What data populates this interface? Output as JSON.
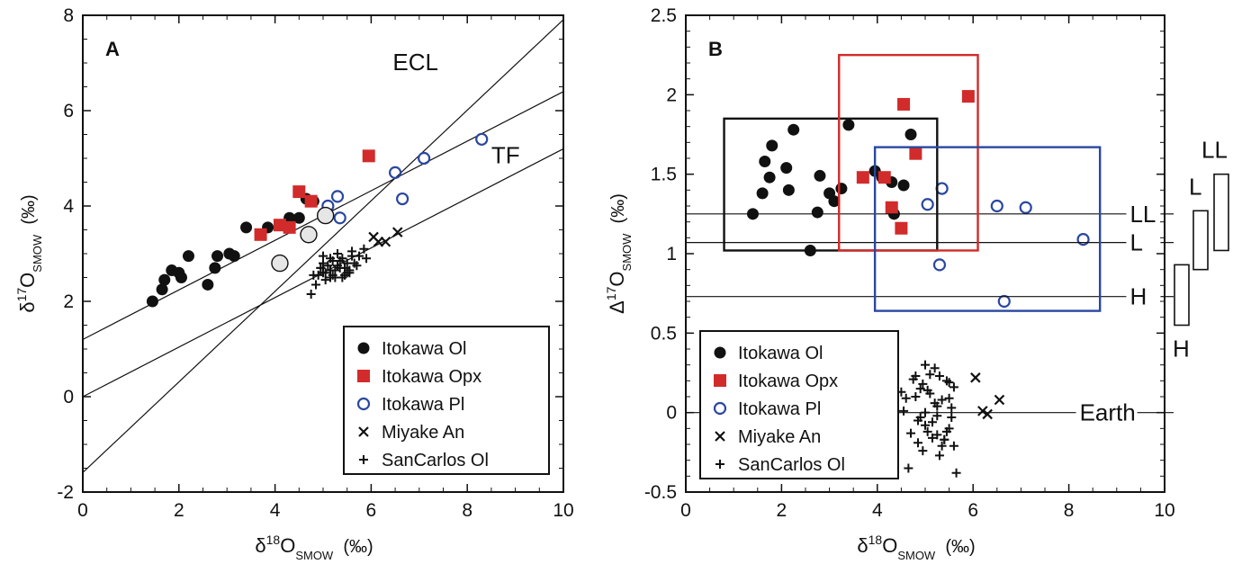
{
  "chart_data": [
    {
      "panel_label": "A",
      "type": "scatter",
      "xlabel": {
        "symbol": "δ",
        "sup": "18",
        "main": "O",
        "sub": "SMOW",
        "unit": "(‰)"
      },
      "ylabel": {
        "symbol": "δ",
        "sup": "17",
        "main": "O",
        "sub": "SMOW",
        "unit": "(‰)"
      },
      "xlim": [
        0,
        10
      ],
      "ylim": [
        -2,
        8
      ],
      "xticks": [
        "0",
        "2",
        "4",
        "6",
        "8",
        "10"
      ],
      "yticks": [
        "-2",
        "0",
        "2",
        "4",
        "6",
        "8"
      ],
      "grid": false,
      "legend_position": "bottom-right",
      "reference_lines": [
        {
          "label": "ECL",
          "slope": 0.95,
          "intercept": -1.59
        },
        {
          "label": "TF",
          "slope": 0.52,
          "intercept": 0.0
        },
        {
          "label": "",
          "slope": 0.52,
          "intercept": 1.2
        }
      ],
      "series": [
        {
          "name": "Itokawa Ol",
          "marker": "filled-circle",
          "color": "#111111",
          "x": [
            1.45,
            1.65,
            1.7,
            1.85,
            2.0,
            2.05,
            2.2,
            2.6,
            2.75,
            2.8,
            3.05,
            3.15,
            3.4,
            3.85,
            4.1,
            4.3,
            4.5,
            4.65,
            4.8
          ],
          "y": [
            2.0,
            2.25,
            2.45,
            2.65,
            2.6,
            2.5,
            2.95,
            2.35,
            2.7,
            2.95,
            3.0,
            2.95,
            3.55,
            3.55,
            3.6,
            3.75,
            3.75,
            4.15,
            4.1
          ]
        },
        {
          "name": "Itokawa Opx",
          "marker": "filled-square",
          "color": "#d22b2b",
          "x": [
            3.7,
            4.1,
            4.3,
            4.5,
            4.75,
            5.05,
            5.95
          ],
          "y": [
            3.4,
            3.6,
            3.55,
            4.3,
            4.1,
            3.8,
            5.05
          ]
        },
        {
          "name": "Itokawa Pl",
          "marker": "open-circle",
          "color": "#2a47a0",
          "x": [
            5.1,
            5.3,
            5.35,
            6.5,
            6.65,
            7.1,
            8.3
          ],
          "y": [
            4.0,
            4.2,
            3.75,
            4.7,
            4.15,
            5.0,
            5.4
          ]
        },
        {
          "name": "Miyake An",
          "marker": "cross",
          "color": "#111111",
          "x": [
            6.05,
            6.15,
            6.3,
            6.55
          ],
          "y": [
            3.35,
            3.25,
            3.25,
            3.45
          ]
        },
        {
          "name": "SanCarlos Ol",
          "marker": "plus",
          "color": "#111111",
          "x": [
            4.75,
            4.85,
            4.9,
            4.95,
            5.0,
            5.05,
            5.0,
            5.1,
            5.15,
            5.2,
            5.25,
            5.3,
            5.35,
            5.4,
            5.45,
            5.5,
            5.55,
            5.6,
            5.7,
            5.75,
            5.85,
            5.9,
            4.8,
            5.05,
            5.15,
            5.25,
            5.3,
            5.35,
            5.45,
            5.5,
            5.6,
            5.65,
            5.15,
            5.0,
            4.95,
            5.2,
            5.4,
            5.55
          ],
          "y": [
            2.15,
            2.35,
            2.55,
            2.7,
            2.8,
            2.6,
            2.95,
            2.75,
            2.5,
            2.85,
            2.65,
            3.0,
            2.7,
            2.9,
            2.55,
            2.8,
            2.6,
            3.05,
            2.75,
            2.95,
            3.1,
            2.9,
            2.55,
            2.45,
            2.65,
            2.5,
            2.75,
            2.85,
            2.7,
            2.6,
            2.95,
            2.8,
            2.9,
            2.6,
            2.7,
            2.55,
            2.5,
            2.65
          ]
        },
        {
          "name": "",
          "marker": "gray-open-circle-large",
          "color": "#111111",
          "x": [
            4.1,
            4.7,
            5.05
          ],
          "y": [
            2.8,
            3.4,
            3.8
          ]
        }
      ]
    },
    {
      "panel_label": "B",
      "type": "scatter",
      "xlabel": {
        "symbol": "δ",
        "sup": "18",
        "main": "O",
        "sub": "SMOW",
        "unit": "(‰)"
      },
      "ylabel": {
        "symbol": "Δ",
        "sup": "17",
        "main": "O",
        "sub": "SMOW",
        "unit": "(‰)"
      },
      "xlim": [
        0,
        10
      ],
      "ylim": [
        -0.5,
        2.5
      ],
      "xticks": [
        "0",
        "2",
        "4",
        "6",
        "8",
        "10"
      ],
      "yticks": [
        "-0.5",
        "0",
        "0.5",
        "1",
        "1.5",
        "2",
        "2.5"
      ],
      "grid": false,
      "legend_position": "bottom-left",
      "reference_lines": [
        {
          "label": "LL",
          "y": 1.25
        },
        {
          "label": "L",
          "y": 1.07
        },
        {
          "label": "H",
          "y": 0.73
        },
        {
          "label": "Earth",
          "y": 0.0
        }
      ],
      "boxes": [
        {
          "color": "#111111",
          "x": [
            0.8,
            5.25
          ],
          "y": [
            1.02,
            1.85
          ]
        },
        {
          "color": "#d22b2b",
          "x": [
            3.2,
            6.1
          ],
          "y": [
            1.02,
            2.25
          ]
        },
        {
          "color": "#2a47a0",
          "x": [
            3.95,
            8.65
          ],
          "y": [
            0.64,
            1.67
          ]
        }
      ],
      "side_ranges": [
        {
          "label": "H",
          "y": [
            0.55,
            0.93
          ]
        },
        {
          "label": "L",
          "y": [
            0.9,
            1.27
          ]
        },
        {
          "label": "LL",
          "y": [
            1.02,
            1.5
          ]
        }
      ],
      "series": [
        {
          "name": "Itokawa Ol",
          "marker": "filled-circle",
          "color": "#111111",
          "x": [
            1.4,
            1.6,
            1.65,
            1.75,
            1.8,
            2.1,
            2.15,
            2.25,
            2.6,
            2.75,
            2.8,
            3.0,
            3.1,
            3.25,
            3.4,
            3.95,
            4.1,
            4.3,
            4.35,
            4.55,
            4.7
          ],
          "y": [
            1.25,
            1.38,
            1.58,
            1.48,
            1.68,
            1.54,
            1.4,
            1.78,
            1.02,
            1.26,
            1.49,
            1.38,
            1.33,
            1.41,
            1.81,
            1.52,
            1.48,
            1.45,
            1.25,
            1.43,
            1.75
          ]
        },
        {
          "name": "Itokawa Opx",
          "marker": "filled-square",
          "color": "#d22b2b",
          "x": [
            3.7,
            4.15,
            4.3,
            4.5,
            4.55,
            4.8,
            5.9
          ],
          "y": [
            1.48,
            1.48,
            1.29,
            1.16,
            1.94,
            1.63,
            1.99
          ]
        },
        {
          "name": "Itokawa Pl",
          "marker": "open-circle",
          "color": "#2a47a0",
          "x": [
            5.05,
            5.3,
            5.35,
            6.5,
            7.1,
            8.3,
            6.65
          ],
          "y": [
            1.31,
            0.93,
            1.41,
            1.3,
            1.29,
            1.09,
            0.7
          ]
        },
        {
          "name": "Miyake An",
          "marker": "cross",
          "color": "#111111",
          "x": [
            6.05,
            6.2,
            6.3,
            6.55
          ],
          "y": [
            0.22,
            0.01,
            -0.01,
            0.08
          ]
        },
        {
          "name": "SanCarlos Ol",
          "marker": "plus",
          "color": "#111111",
          "x": [
            4.5,
            4.55,
            4.6,
            4.7,
            4.75,
            4.8,
            4.85,
            4.9,
            4.95,
            5.0,
            5.0,
            5.05,
            5.1,
            5.15,
            5.2,
            5.2,
            5.25,
            5.3,
            5.3,
            5.35,
            5.4,
            5.45,
            5.5,
            5.5,
            5.55,
            5.6,
            5.6,
            5.65,
            4.65,
            4.8,
            4.9,
            5.0,
            5.1,
            5.25,
            5.35,
            5.45,
            5.55,
            4.95,
            5.15,
            5.4,
            5.5,
            5.25,
            5.05,
            4.85
          ],
          "y": [
            0.13,
            0.01,
            0.09,
            -0.13,
            0.21,
            0.23,
            -0.05,
            0.15,
            -0.24,
            0.3,
            0.0,
            -0.12,
            0.24,
            -0.16,
            0.06,
            0.28,
            -0.14,
            0.23,
            -0.27,
            0.08,
            -0.17,
            0.2,
            -0.1,
            0.09,
            0.03,
            -0.21,
            0.16,
            -0.38,
            -0.35,
            0.1,
            -0.03,
            -0.08,
            0.12,
            0.04,
            -0.21,
            -0.12,
            -0.03,
            0.18,
            -0.06,
            -0.17,
            0.19,
            -0.02,
            0.14,
            -0.19
          ]
        }
      ]
    }
  ]
}
